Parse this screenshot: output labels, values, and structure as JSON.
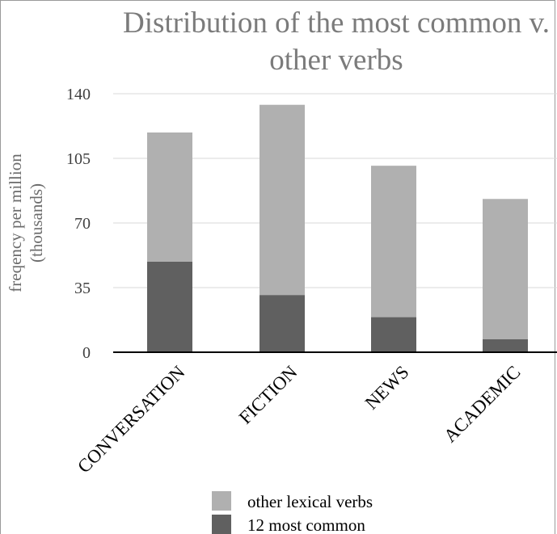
{
  "chart_data": {
    "type": "bar",
    "stacked": true,
    "title": "Distribution of the most common v. other verbs",
    "title_lines": [
      "Distribution of the most common v.",
      "other verbs"
    ],
    "ylabel": "freqency per million (thousands)",
    "ylabel_lines": [
      "freqency per million",
      "(thousands)"
    ],
    "xlabel": "",
    "categories": [
      "CONVERSATION",
      "FICTION",
      "NEWS",
      "ACADEMIC"
    ],
    "series": [
      {
        "name": "12 most common",
        "values": [
          49,
          31,
          19,
          7
        ],
        "color": "#606060"
      },
      {
        "name": "other lexical verbs",
        "values": [
          70,
          103,
          82,
          76
        ],
        "color": "#b0b0b0"
      }
    ],
    "ylim": [
      0,
      140
    ],
    "yticks": [
      0,
      35,
      70,
      105,
      140
    ],
    "grid": true,
    "legend_position": "bottom"
  }
}
